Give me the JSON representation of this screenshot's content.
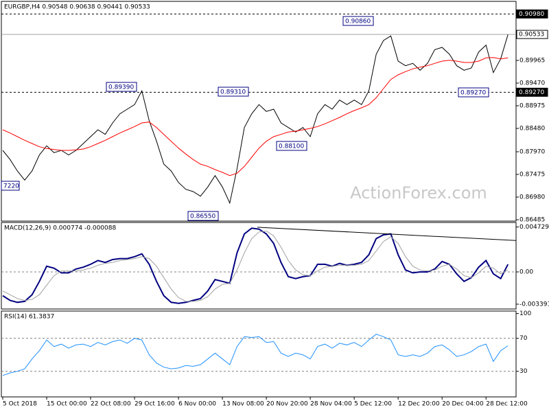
{
  "chart_data": [
    {
      "type": "line",
      "title": "EURGBP,H4 0.90548 0.90638 0.90441 0.90533",
      "ylim": [
        0.86455,
        0.91255
      ],
      "yticks": [
        0.89965,
        {
          "value": 0.8947,
          "label": "0.89470"
        },
        0.88975,
        {
          "value": 0.8848,
          "label": "0.88480"
        },
        {
          "value": 0.8797,
          "label": "0.87970"
        },
        0.87475,
        {
          "value": 0.8698,
          "label": "0.86980"
        },
        0.86485
      ],
      "grid": [
        false,
        false,
        false,
        false,
        false,
        false,
        false,
        false
      ],
      "series": [
        {
          "color": "#000000",
          "values": [
            0.88,
            0.878,
            0.8755,
            0.8735,
            0.8755,
            0.879,
            0.881,
            0.8795,
            0.88,
            0.879,
            0.88,
            0.8815,
            0.883,
            0.8845,
            0.8835,
            0.886,
            0.888,
            0.889,
            0.89,
            0.893,
            0.8865,
            0.882,
            0.877,
            0.8755,
            0.873,
            0.8715,
            0.871,
            0.87,
            0.872,
            0.8745,
            0.872,
            0.8685,
            0.876,
            0.885,
            0.888,
            0.89,
            0.8885,
            0.889,
            0.886,
            0.885,
            0.884,
            0.885,
            0.883,
            0.888,
            0.89,
            0.889,
            0.891,
            0.89,
            0.891,
            0.89,
            0.893,
            0.901,
            0.904,
            0.905,
            0.8995,
            0.8985,
            0.899,
            0.8975,
            0.899,
            0.902,
            0.9025,
            0.901,
            0.8985,
            0.8975,
            0.898,
            0.9015,
            0.903,
            0.897,
            0.9,
            0.9053
          ]
        },
        {
          "color": "#ff0000",
          "values": [
            0.8845,
            0.8838,
            0.883,
            0.8822,
            0.8815,
            0.8808,
            0.8804,
            0.8802,
            0.88,
            0.88,
            0.8801,
            0.8803,
            0.8808,
            0.8815,
            0.8822,
            0.883,
            0.8838,
            0.8845,
            0.8852,
            0.886,
            0.8862,
            0.885,
            0.8835,
            0.882,
            0.8805,
            0.8792,
            0.878,
            0.877,
            0.8765,
            0.8758,
            0.8752,
            0.8745,
            0.875,
            0.8765,
            0.8785,
            0.8805,
            0.882,
            0.883,
            0.8835,
            0.884,
            0.8842,
            0.8845,
            0.8848,
            0.8852,
            0.8858,
            0.8865,
            0.8872,
            0.888,
            0.8887,
            0.8893,
            0.89,
            0.8915,
            0.8935,
            0.8955,
            0.8965,
            0.8972,
            0.8978,
            0.8982,
            0.8985,
            0.899,
            0.8995,
            0.8997,
            0.8995,
            0.8992,
            0.8992,
            0.8995,
            0.9002,
            0.9003,
            0.9,
            0.9002
          ]
        }
      ],
      "levels": [
        {
          "value": 0.9098,
          "label": "0.90980",
          "line": "dashed"
        },
        {
          "value": 0.90533,
          "label": "0.90533",
          "line": "solid"
        },
        {
          "value": 0.8927,
          "label": "0.89270",
          "line": "dashed"
        }
      ],
      "price_labels": [
        "0.89390",
        "0.89310",
        "0.90860",
        "0.88100",
        "0.86550",
        "7220",
        "0.89270"
      ],
      "watermark": "ActionForex.com"
    },
    {
      "type": "line",
      "title": "MACD(12,26,9) 0.000774 -0.000088",
      "ylim": [
        -0.0039,
        0.0052
      ],
      "yticks": [
        -0.003391,
        {
          "value": 0,
          "label": "0.00"
        },
        0.004729
      ],
      "grid": [
        false,
        true,
        false
      ],
      "series": [
        {
          "color": "#000080",
          "values": [
            -0.0025,
            -0.003,
            -0.0032,
            -0.0031,
            -0.0024,
            -0.001,
            0.0006,
            0.0004,
            -0.0001,
            -0.0001,
            0.0003,
            0.0005,
            0.0008,
            0.0012,
            0.001,
            0.0013,
            0.0014,
            0.0014,
            0.0016,
            0.0019,
            0.0008,
            -0.001,
            -0.0025,
            -0.0032,
            -0.0033,
            -0.0032,
            -0.003,
            -0.0028,
            -0.002,
            -0.0008,
            -0.001,
            -0.0012,
            0.002,
            0.004,
            0.0046,
            0.0045,
            0.004,
            0.003,
            0.001,
            -0.0005,
            -0.0007,
            -0.0005,
            -0.0004,
            0.0008,
            0.0008,
            0.0006,
            0.0009,
            0.0007,
            0.0008,
            0.001,
            0.0018,
            0.0035,
            0.0039,
            0.004,
            0.0018,
            0.0002,
            -0.0001,
            0.0,
            0.0,
            0.0003,
            0.0011,
            0.0008,
            -0.0002,
            -0.001,
            -0.0006,
            0.0005,
            0.0012,
            -0.0002,
            -0.0007,
            0.0008
          ]
        },
        {
          "color": "#a0a0a0",
          "values": [
            -0.002,
            -0.0024,
            -0.0028,
            -0.003,
            -0.0029,
            -0.0024,
            -0.0014,
            -0.0004,
            0.0001,
            0.0001,
            0.0001,
            0.0002,
            0.0004,
            0.0007,
            0.0009,
            0.001,
            0.0012,
            0.0013,
            0.0014,
            0.0016,
            0.0014,
            0.0006,
            -0.0006,
            -0.0018,
            -0.0027,
            -0.0031,
            -0.0031,
            -0.003,
            -0.0026,
            -0.0018,
            -0.0013,
            -0.0012,
            0.0002,
            0.002,
            0.0035,
            0.0042,
            0.0043,
            0.0038,
            0.0026,
            0.0012,
            0.0002,
            -0.0003,
            -0.0004,
            0.0001,
            0.0005,
            0.0006,
            0.0007,
            0.0007,
            0.0007,
            0.0008,
            0.0012,
            0.0022,
            0.0032,
            0.0037,
            0.003,
            0.0016,
            0.0006,
            0.0002,
            0.0001,
            0.0002,
            0.0006,
            0.0008,
            0.0003,
            -0.0004,
            -0.0006,
            -0.0001,
            0.0006,
            0.0004,
            -0.0002,
            0.0002
          ]
        }
      ],
      "trendline": [
        0.0047,
        0.0033
      ]
    },
    {
      "type": "line",
      "title": "RSI(14) 61.3837",
      "ylim": [
        -1,
        103
      ],
      "yticks": [
        30,
        70,
        100
      ],
      "grid": [
        true,
        true,
        false
      ],
      "series": [
        {
          "color": "#1e90ff",
          "values": [
            25,
            28,
            30,
            33,
            45,
            55,
            68,
            60,
            63,
            58,
            62,
            63,
            60,
            65,
            62,
            66,
            68,
            64,
            70,
            68,
            50,
            40,
            35,
            33,
            34,
            37,
            36,
            38,
            45,
            52,
            45,
            38,
            60,
            72,
            71,
            72,
            65,
            66,
            52,
            48,
            52,
            50,
            45,
            60,
            63,
            58,
            64,
            62,
            65,
            60,
            68,
            75,
            72,
            68,
            50,
            48,
            50,
            48,
            52,
            60,
            62,
            56,
            48,
            50,
            54,
            60,
            63,
            42,
            55,
            61
          ]
        }
      ],
      "categories": [
        "5 Oct 2018",
        null,
        null,
        null,
        null,
        null,
        "15 Oct 00:00",
        null,
        null,
        null,
        null,
        null,
        "22 Oct 08:00",
        null,
        null,
        null,
        null,
        null,
        "29 Oct 16:00",
        null,
        null,
        null,
        null,
        null,
        "6 Nov 00:00",
        null,
        null,
        null,
        null,
        null,
        "13 Nov 08:00",
        null,
        null,
        null,
        null,
        null,
        "20 Nov 20:00",
        null,
        null,
        null,
        null,
        null,
        "28 Nov 04:00",
        null,
        null,
        null,
        null,
        null,
        "5 Dec 12:00",
        null,
        null,
        null,
        null,
        null,
        "12 Dec 20:00",
        null,
        null,
        null,
        null,
        null,
        "20 Dec 04:00",
        null,
        null,
        null,
        null,
        null,
        "28 Dec 12:00",
        null,
        null,
        null
      ]
    }
  ]
}
